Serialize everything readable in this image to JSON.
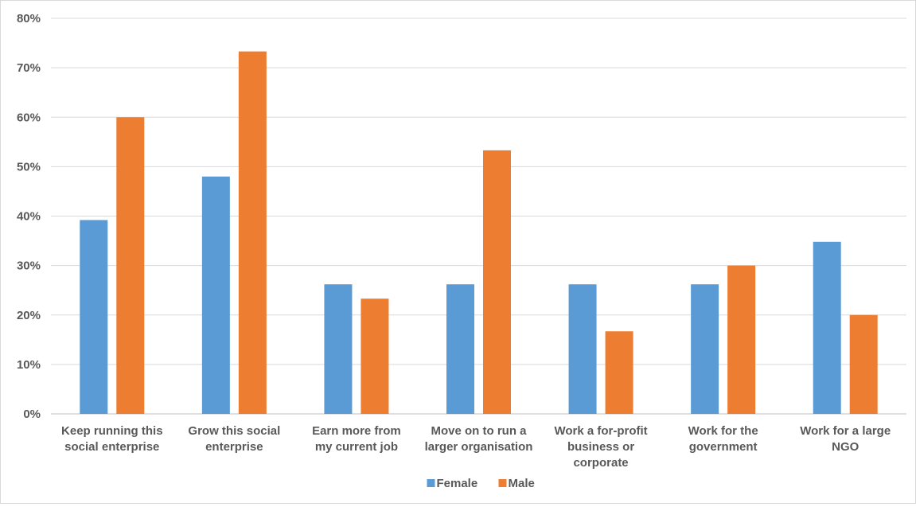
{
  "chart_data": {
    "type": "bar",
    "categories": [
      [
        "Keep running this",
        "social enterprise"
      ],
      [
        "Grow this social",
        "enterprise"
      ],
      [
        "Earn more from",
        "my current job"
      ],
      [
        "Move on to run a",
        "larger organisation"
      ],
      [
        "Work a for-profit",
        "business or",
        "corporate"
      ],
      [
        "Work for the",
        "government"
      ],
      [
        "Work for a large",
        "NGO"
      ]
    ],
    "series": [
      {
        "name": "Female",
        "color": "#5b9bd5",
        "values": [
          0.392,
          0.48,
          0.262,
          0.262,
          0.262,
          0.262,
          0.348
        ]
      },
      {
        "name": "Male",
        "color": "#ed7d31",
        "values": [
          0.6,
          0.733,
          0.233,
          0.533,
          0.167,
          0.3,
          0.2
        ]
      }
    ],
    "ylim": [
      0,
      0.8
    ],
    "yticks": [
      "0%",
      "10%",
      "20%",
      "30%",
      "40%",
      "50%",
      "60%",
      "70%",
      "80%"
    ],
    "grid": true,
    "legend_position": "bottom"
  }
}
